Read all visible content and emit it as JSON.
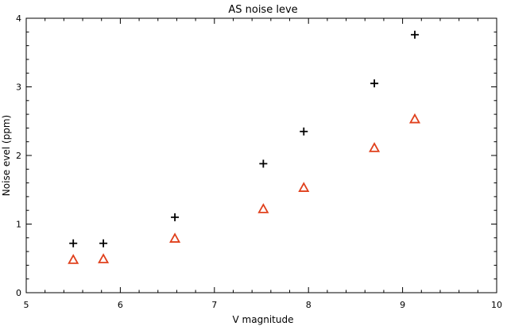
{
  "chart_data": {
    "type": "scatter",
    "title": "AS noise leve",
    "xlabel": "V magnitude",
    "ylabel": "Noise evel (ppm)",
    "xlim": [
      5,
      10
    ],
    "ylim": [
      0,
      4
    ],
    "xticks": [
      5,
      6,
      7,
      8,
      9,
      10
    ],
    "xtick_labels": [
      "5",
      "6",
      "7",
      "8",
      "9",
      "10"
    ],
    "yticks": [
      0,
      1,
      2,
      3,
      4
    ],
    "ytick_labels": [
      "0",
      "1",
      "2",
      "3",
      "4"
    ],
    "grid": false,
    "series": [
      {
        "marker": "plus",
        "color": "#000000",
        "x": [
          5.5,
          5.82,
          6.58,
          7.52,
          7.95,
          8.7,
          9.13
        ],
        "y": [
          0.72,
          0.72,
          1.1,
          1.88,
          2.35,
          3.05,
          3.76
        ]
      },
      {
        "marker": "triangle",
        "color": "#e0401c",
        "x": [
          5.5,
          5.82,
          6.58,
          7.52,
          7.95,
          8.7,
          9.13
        ],
        "y": [
          0.48,
          0.49,
          0.79,
          1.22,
          1.53,
          2.11,
          2.53
        ]
      }
    ]
  }
}
